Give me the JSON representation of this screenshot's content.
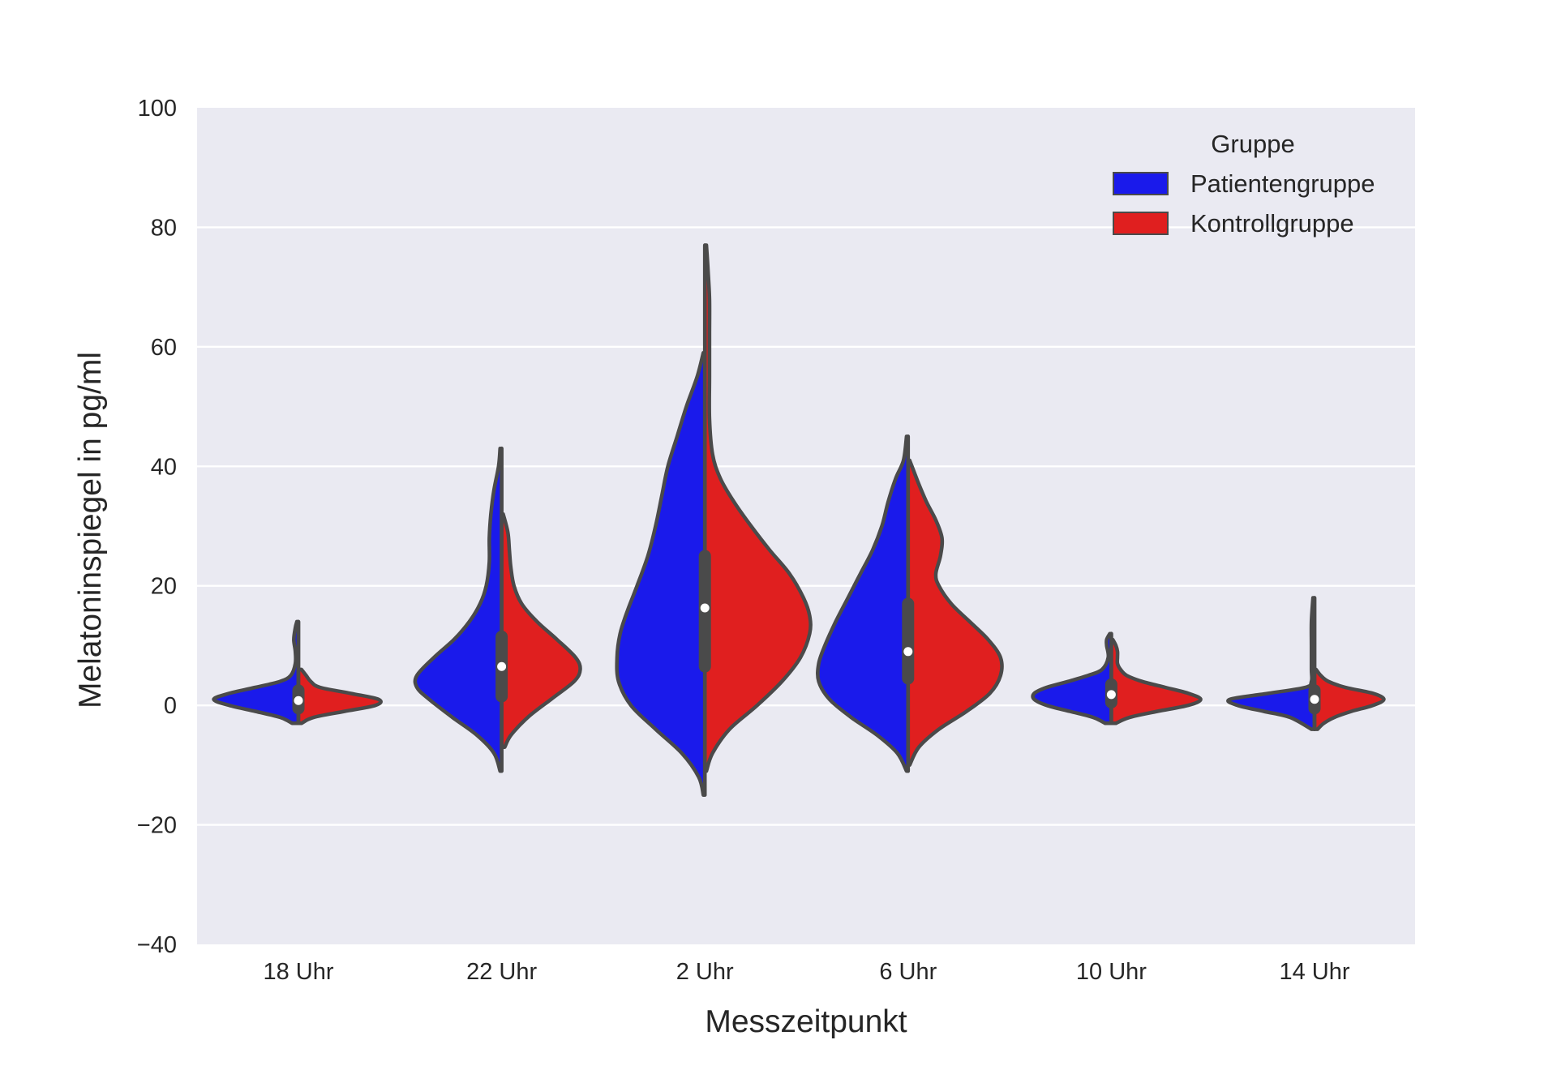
{
  "chart_data": {
    "type": "violin",
    "split": true,
    "xlabel": "Messzeitpunkt",
    "ylabel": "Melatoninspiegel in pg/ml",
    "categories": [
      "18 Uhr",
      "22 Uhr",
      "2 Uhr",
      "6 Uhr",
      "10 Uhr",
      "14 Uhr"
    ],
    "ylim": [
      -40,
      100
    ],
    "yticks": [
      -40,
      -20,
      0,
      20,
      40,
      60,
      80,
      100
    ],
    "ytick_labels": [
      "−40",
      "−20",
      "0",
      "20",
      "40",
      "60",
      "80",
      "100"
    ],
    "grid": true,
    "background": "#eaeaf2",
    "grid_color": "#ffffff",
    "outline_color": "#4a4a4a",
    "legend": {
      "title": "Gruppe",
      "position": "top-right",
      "entries": [
        "Patientengruppe",
        "Kontrollgruppe"
      ]
    },
    "series": [
      {
        "name": "Patientengruppe",
        "color": "#1a1aeb",
        "side": "left",
        "violins": [
          {
            "category": "18 Uhr",
            "min": -3,
            "max": 14,
            "profile": [
              [
                -3,
                0.04
              ],
              [
                -2,
                0.12
              ],
              [
                -1,
                0.28
              ],
              [
                0,
                0.45
              ],
              [
                1,
                0.55
              ],
              [
                2,
                0.45
              ],
              [
                3,
                0.28
              ],
              [
                4,
                0.12
              ],
              [
                5,
                0.05
              ],
              [
                7,
                0.02
              ],
              [
                9,
                0.02
              ],
              [
                11,
                0.03
              ],
              [
                13,
                0.02
              ],
              [
                14,
                0.01
              ]
            ]
          },
          {
            "category": "22 Uhr",
            "min": -11,
            "max": 43,
            "profile": [
              [
                -11,
                0.01
              ],
              [
                -8,
                0.05
              ],
              [
                -5,
                0.16
              ],
              [
                -2,
                0.32
              ],
              [
                1,
                0.47
              ],
              [
                3,
                0.55
              ],
              [
                5,
                0.55
              ],
              [
                8,
                0.44
              ],
              [
                11,
                0.31
              ],
              [
                14,
                0.21
              ],
              [
                17,
                0.14
              ],
              [
                20,
                0.1
              ],
              [
                24,
                0.08
              ],
              [
                28,
                0.08
              ],
              [
                32,
                0.07
              ],
              [
                36,
                0.05
              ],
              [
                40,
                0.02
              ],
              [
                43,
                0.01
              ]
            ]
          },
          {
            "category": "2 Uhr",
            "min": -15,
            "max": 59,
            "profile": [
              [
                -15,
                0.01
              ],
              [
                -12,
                0.04
              ],
              [
                -8,
                0.15
              ],
              [
                -4,
                0.32
              ],
              [
                0,
                0.48
              ],
              [
                4,
                0.56
              ],
              [
                8,
                0.57
              ],
              [
                12,
                0.55
              ],
              [
                16,
                0.5
              ],
              [
                20,
                0.44
              ],
              [
                25,
                0.37
              ],
              [
                30,
                0.32
              ],
              [
                35,
                0.28
              ],
              [
                40,
                0.24
              ],
              [
                45,
                0.18
              ],
              [
                50,
                0.12
              ],
              [
                55,
                0.05
              ],
              [
                59,
                0.01
              ]
            ]
          },
          {
            "category": "6 Uhr",
            "min": -11,
            "max": 45,
            "profile": [
              [
                -11,
                0.01
              ],
              [
                -8,
                0.07
              ],
              [
                -5,
                0.2
              ],
              [
                -2,
                0.37
              ],
              [
                1,
                0.51
              ],
              [
                4,
                0.58
              ],
              [
                7,
                0.58
              ],
              [
                10,
                0.54
              ],
              [
                14,
                0.47
              ],
              [
                18,
                0.39
              ],
              [
                22,
                0.31
              ],
              [
                26,
                0.23
              ],
              [
                30,
                0.17
              ],
              [
                34,
                0.13
              ],
              [
                38,
                0.08
              ],
              [
                41,
                0.03
              ],
              [
                45,
                0.01
              ]
            ]
          },
          {
            "category": "10 Uhr",
            "min": -3,
            "max": 12,
            "profile": [
              [
                -3,
                0.04
              ],
              [
                -2,
                0.12
              ],
              [
                -1,
                0.27
              ],
              [
                0,
                0.42
              ],
              [
                1,
                0.5
              ],
              [
                2,
                0.5
              ],
              [
                3,
                0.42
              ],
              [
                4,
                0.28
              ],
              [
                5,
                0.15
              ],
              [
                6,
                0.06
              ],
              [
                8,
                0.02
              ],
              [
                10,
                0.03
              ],
              [
                11,
                0.03
              ],
              [
                12,
                0.01
              ]
            ]
          },
          {
            "category": "14 Uhr",
            "min": -4,
            "max": 18,
            "profile": [
              [
                -4,
                0.02
              ],
              [
                -2,
                0.16
              ],
              [
                -1,
                0.33
              ],
              [
                0,
                0.5
              ],
              [
                1,
                0.55
              ],
              [
                2,
                0.3
              ],
              [
                3,
                0.06
              ],
              [
                4,
                0.02
              ],
              [
                6,
                0.02
              ],
              [
                10,
                0.02
              ],
              [
                14,
                0.02
              ],
              [
                18,
                0.01
              ]
            ]
          }
        ]
      },
      {
        "name": "Kontrollgruppe",
        "color": "#e01f1f",
        "side": "right",
        "violins": [
          {
            "category": "18 Uhr",
            "min": -3,
            "max": 6,
            "profile": [
              [
                -3,
                0.02
              ],
              [
                -2,
                0.1
              ],
              [
                -1,
                0.3
              ],
              [
                0,
                0.5
              ],
              [
                1,
                0.52
              ],
              [
                2,
                0.34
              ],
              [
                3,
                0.14
              ],
              [
                4,
                0.08
              ],
              [
                5,
                0.05
              ],
              [
                6,
                0.02
              ]
            ]
          },
          {
            "category": "22 Uhr",
            "min": -7,
            "max": 32,
            "profile": [
              [
                -7,
                0.02
              ],
              [
                -5,
                0.06
              ],
              [
                -2,
                0.17
              ],
              [
                1,
                0.32
              ],
              [
                4,
                0.47
              ],
              [
                6,
                0.51
              ],
              [
                8,
                0.48
              ],
              [
                11,
                0.36
              ],
              [
                14,
                0.23
              ],
              [
                17,
                0.13
              ],
              [
                20,
                0.08
              ],
              [
                23,
                0.06
              ],
              [
                26,
                0.05
              ],
              [
                29,
                0.04
              ],
              [
                32,
                0.01
              ]
            ]
          },
          {
            "category": "2 Uhr",
            "min": -11,
            "max": 77,
            "profile": [
              [
                -11,
                0.01
              ],
              [
                -8,
                0.05
              ],
              [
                -4,
                0.16
              ],
              [
                0,
                0.34
              ],
              [
                4,
                0.5
              ],
              [
                8,
                0.62
              ],
              [
                12,
                0.68
              ],
              [
                15,
                0.68
              ],
              [
                18,
                0.64
              ],
              [
                22,
                0.55
              ],
              [
                26,
                0.42
              ],
              [
                30,
                0.3
              ],
              [
                34,
                0.19
              ],
              [
                38,
                0.1
              ],
              [
                42,
                0.05
              ],
              [
                48,
                0.03
              ],
              [
                55,
                0.03
              ],
              [
                62,
                0.03
              ],
              [
                68,
                0.03
              ],
              [
                73,
                0.02
              ],
              [
                77,
                0.01
              ]
            ]
          },
          {
            "category": "6 Uhr",
            "min": -10,
            "max": 41,
            "profile": [
              [
                -10,
                0.01
              ],
              [
                -7,
                0.07
              ],
              [
                -4,
                0.2
              ],
              [
                -1,
                0.38
              ],
              [
                2,
                0.53
              ],
              [
                5,
                0.6
              ],
              [
                8,
                0.6
              ],
              [
                11,
                0.52
              ],
              [
                14,
                0.4
              ],
              [
                17,
                0.28
              ],
              [
                20,
                0.2
              ],
              [
                22,
                0.18
              ],
              [
                25,
                0.21
              ],
              [
                28,
                0.22
              ],
              [
                31,
                0.18
              ],
              [
                34,
                0.12
              ],
              [
                37,
                0.07
              ],
              [
                39,
                0.04
              ],
              [
                41,
                0.01
              ]
            ]
          },
          {
            "category": "10 Uhr",
            "min": -3,
            "max": 11,
            "profile": [
              [
                -3,
                0.03
              ],
              [
                -2,
                0.12
              ],
              [
                -1,
                0.3
              ],
              [
                0,
                0.5
              ],
              [
                1,
                0.58
              ],
              [
                2,
                0.5
              ],
              [
                3,
                0.35
              ],
              [
                4,
                0.2
              ],
              [
                5,
                0.1
              ],
              [
                6,
                0.06
              ],
              [
                7,
                0.04
              ],
              [
                8,
                0.04
              ],
              [
                9,
                0.04
              ],
              [
                10,
                0.03
              ],
              [
                11,
                0.01
              ]
            ]
          },
          {
            "category": "14 Uhr",
            "min": -4,
            "max": 6,
            "profile": [
              [
                -4,
                0.02
              ],
              [
                -3,
                0.06
              ],
              [
                -2,
                0.13
              ],
              [
                -1,
                0.24
              ],
              [
                0,
                0.38
              ],
              [
                1,
                0.45
              ],
              [
                2,
                0.38
              ],
              [
                3,
                0.2
              ],
              [
                4,
                0.09
              ],
              [
                5,
                0.04
              ],
              [
                6,
                0.01
              ]
            ]
          }
        ]
      }
    ],
    "inner_box": [
      {
        "category": "18 Uhr",
        "whisker_low": -3,
        "whisker_high": 14,
        "q1": -0.5,
        "q3": 2.5,
        "median": 0.8
      },
      {
        "category": "22 Uhr",
        "whisker_low": -11,
        "whisker_high": 43,
        "q1": 1.5,
        "q3": 11.5,
        "median": 6.5
      },
      {
        "category": "2 Uhr",
        "whisker_low": -15,
        "whisker_high": 77,
        "q1": 6.5,
        "q3": 25,
        "median": 16.3
      },
      {
        "category": "6 Uhr",
        "whisker_low": -11,
        "whisker_high": 45,
        "q1": 4.5,
        "q3": 17,
        "median": 9
      },
      {
        "category": "10 Uhr",
        "whisker_low": -3,
        "whisker_high": 12,
        "q1": 0.5,
        "q3": 3.5,
        "median": 1.8
      },
      {
        "category": "14 Uhr",
        "whisker_low": -4,
        "whisker_high": 18,
        "q1": -0.5,
        "q3": 2.5,
        "median": 1
      }
    ]
  }
}
